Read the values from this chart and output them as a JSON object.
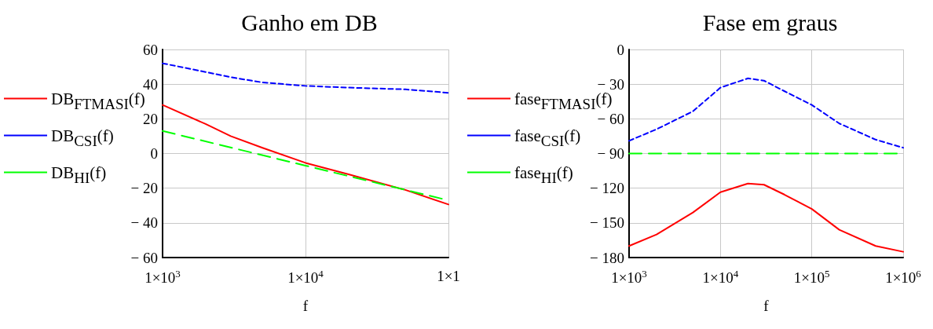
{
  "chart_data": [
    {
      "type": "line",
      "title": "Ganho em DB",
      "xlabel": "f",
      "log": "x",
      "grid": true,
      "legend": "left",
      "xlim": [
        1000,
        100000
      ],
      "xticks": [
        {
          "value": 1000,
          "label": "1×10$^{3}$"
        },
        {
          "value": 10000,
          "label": "1×10$^{4}$"
        },
        {
          "value": 100000,
          "label": "1×1"
        }
      ],
      "ylim": [
        -60,
        60
      ],
      "yticks": [
        {
          "value": -60,
          "label": "− 60"
        },
        {
          "value": -40,
          "label": "− 40"
        },
        {
          "value": -20,
          "label": "− 20"
        },
        0,
        20,
        40,
        60
      ],
      "series": [
        {
          "name": "DB$_{FTMASI}$(f)",
          "color": "#ff0000",
          "line_style": "solid",
          "x": [
            1000,
            2000,
            3000,
            5000,
            10000,
            20000,
            50000,
            100000
          ],
          "values": [
            28,
            17,
            10,
            3.3,
            -5.4,
            -12,
            -21,
            -29.4
          ]
        },
        {
          "name": "DB$_{CSI}$(f)",
          "color": "#0000ff",
          "line_style": "dotted",
          "x": [
            1000,
            2000,
            3000,
            5000,
            10000,
            20000,
            50000,
            100000
          ],
          "values": [
            52,
            47,
            44,
            41,
            39,
            38,
            37,
            35
          ]
        },
        {
          "name": "DB$_{HI}$(f)",
          "color": "#00ff00",
          "line_style": "dashed",
          "x": [
            1000,
            10000,
            100000
          ],
          "values": [
            13,
            -7,
            -27
          ]
        }
      ]
    },
    {
      "type": "line",
      "title": "Fase em graus",
      "xlabel": "f",
      "log": "x",
      "grid": true,
      "legend": "left",
      "xlim": [
        1000,
        1000000
      ],
      "xticks": [
        {
          "value": 1000,
          "label": "1×10$^{3}$"
        },
        {
          "value": 10000,
          "label": "1×10$^{4}$"
        },
        {
          "value": 100000,
          "label": "1×10$^{5}$"
        },
        {
          "value": 1000000,
          "label": "1×10$^{6}$"
        }
      ],
      "ylim": [
        -180,
        0
      ],
      "yticks": [
        {
          "value": -180,
          "label": "− 180"
        },
        {
          "value": -150,
          "label": "− 150"
        },
        {
          "value": -120,
          "label": "− 120"
        },
        {
          "value": -90,
          "label": "− 90"
        },
        {
          "value": -60,
          "label": "− 60"
        },
        {
          "value": -30,
          "label": "− 30"
        },
        0
      ],
      "series": [
        {
          "name": "fase$_{FTMASI}$(f)",
          "color": "#ff0000",
          "line_style": "solid",
          "x": [
            1000,
            2000,
            5000,
            10000,
            20000,
            30000,
            50000,
            100000,
            200000,
            500000,
            1000000
          ],
          "values": [
            -170,
            -160,
            -141,
            -123.5,
            -116,
            -117,
            -125.5,
            -138,
            -156,
            -170,
            -175
          ]
        },
        {
          "name": "fase$_{CSI}$(f)",
          "color": "#0000ff",
          "line_style": "dotted",
          "x": [
            1000,
            2000,
            5000,
            10000,
            20000,
            30000,
            50000,
            100000,
            200000,
            500000,
            1000000
          ],
          "values": [
            -79,
            -69,
            -53.5,
            -33,
            -25,
            -27,
            -36,
            -48,
            -64,
            -78,
            -85
          ]
        },
        {
          "name": "fase$_{HI}$(f)",
          "color": "#00ff00",
          "line_style": "dashed",
          "x": [
            1000,
            1000000
          ],
          "values": [
            -90,
            -90
          ]
        }
      ]
    }
  ]
}
